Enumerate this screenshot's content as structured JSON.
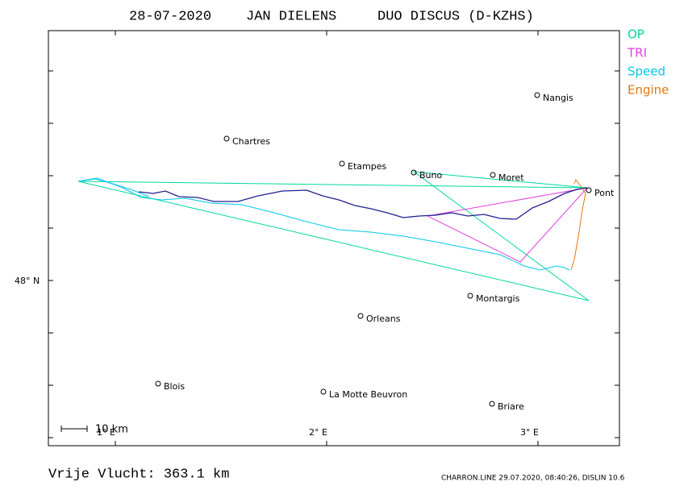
{
  "header": {
    "date": "28-07-2020",
    "pilot": "JAN DIELENS",
    "aircraft": "DUO DISCUS (D-KZHS)"
  },
  "legend": [
    {
      "label": "OP",
      "color": "#00d8a0"
    },
    {
      "label": "TRI",
      "color": "#e040e0"
    },
    {
      "label": "Speed",
      "color": "#00c8e8"
    },
    {
      "label": "Engine",
      "color": "#e07810"
    }
  ],
  "axes": {
    "x_labels": [
      "1° E",
      "2° E",
      "3° E"
    ],
    "y_labels": [
      "48° N"
    ]
  },
  "towns": [
    "Nangis",
    "Chartres",
    "Etampes",
    "Buno",
    "Moret",
    "Pont",
    "Montargis",
    "Orleans",
    "Blois",
    "La Motte Beuvron",
    "Briare"
  ],
  "scale": "10 km",
  "distance": "Vrije Vlucht:  363.1 km",
  "footer": "CHARRON.LINE 29.07.2020, 08:40:26, DISLIN 10.6"
}
